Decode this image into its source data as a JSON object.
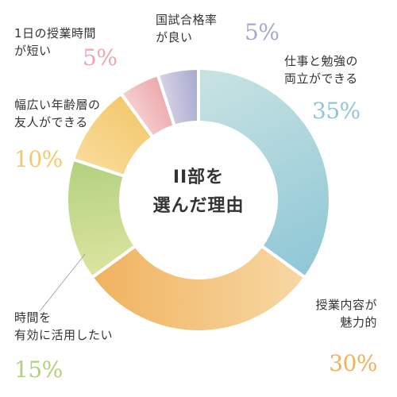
{
  "chart_data": {
    "type": "pie",
    "variant": "donut",
    "center_title": "II部を\n選んだ理由",
    "slices": [
      {
        "label": "仕事と勉強の\n両立ができる",
        "value": 35,
        "display": "35%",
        "color": "#8FC7D6",
        "color_light": "#C9E3E3"
      },
      {
        "label": "授業内容が\n魅力的",
        "value": 30,
        "display": "30%",
        "color": "#F0B25E",
        "color_light": "#F7D8A4"
      },
      {
        "label": "時間を\n有効に活用したい",
        "value": 15,
        "display": "15%",
        "color": "#B2D07E",
        "color_light": "#DCE5A0"
      },
      {
        "label": "幅広い年齢層の\n友人ができる",
        "value": 10,
        "display": "10%",
        "color": "#F3C86E",
        "color_light": "#F8DC98"
      },
      {
        "label": "1日の授業時間\nが短い",
        "value": 5,
        "display": "5%",
        "color": "#EBA8AC",
        "color_light": "#F6D0D0"
      },
      {
        "label": "国試合格率\nが良い",
        "value": 5,
        "display": "5%",
        "color": "#A5A8CF",
        "color_light": "#D8D3E6"
      }
    ]
  }
}
